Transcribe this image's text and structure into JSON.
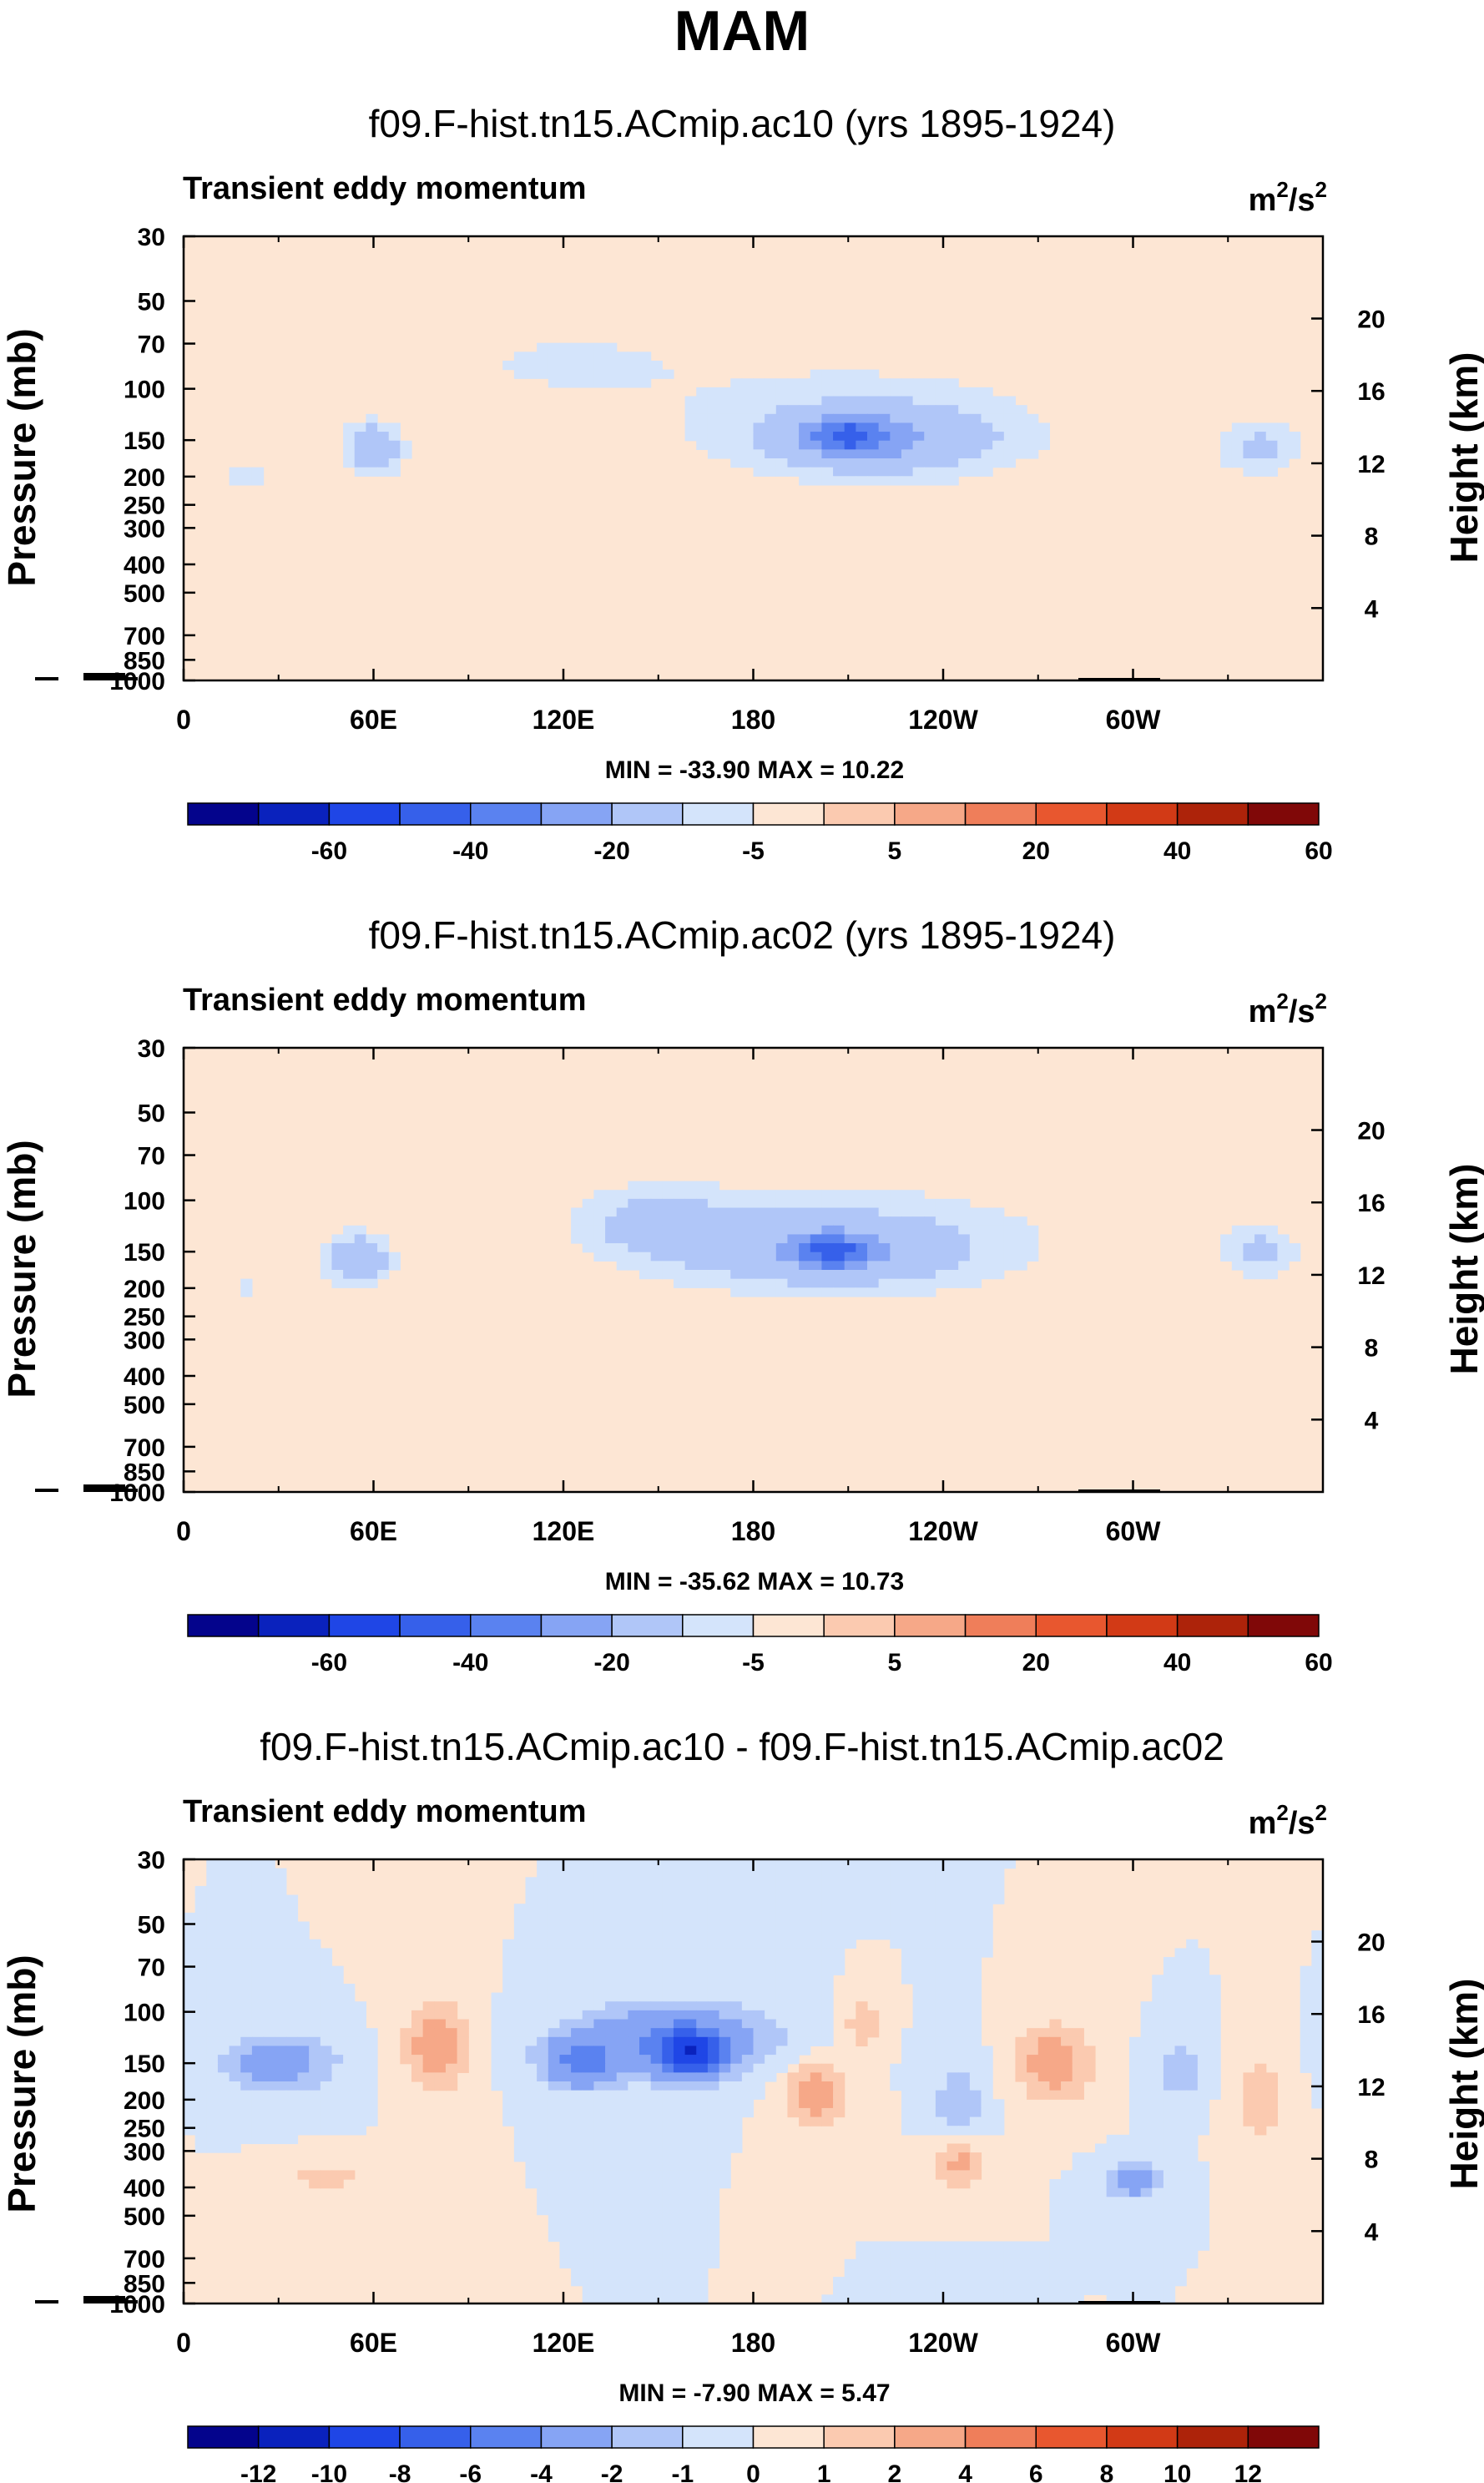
{
  "figure": {
    "title": "MAM",
    "x_ticks": [
      "0",
      "60E",
      "120E",
      "180",
      "120W",
      "60W"
    ],
    "p_ticks": [
      "30",
      "50",
      "70",
      "100",
      "150",
      "200",
      "250",
      "300",
      "400",
      "500",
      "700",
      "850",
      "1000"
    ],
    "h_ticks": [
      "20",
      "16",
      "12",
      "8",
      "4"
    ],
    "ylabel_left": "Pressure (mb)",
    "ylabel_right": "Height (km)",
    "units_base": "m",
    "units_sup1": "2",
    "units_mid": "/s",
    "units_sup2": "2"
  },
  "chart_data": [
    {
      "type": "heatmap",
      "title": "f09.F-hist.tn15.ACmip.ac10 (yrs 1895-1924)",
      "subtitle": "Transient eddy momentum",
      "stats": "MIN = -33.90  MAX =  10.22",
      "x_range": [
        0,
        360
      ],
      "x_unit": "degrees longitude",
      "y_range_pressure_mb": [
        30,
        1000
      ],
      "colorbar_labels": [
        "-60",
        "-40",
        "-20",
        "-5",
        "5",
        "20",
        "40",
        "60"
      ],
      "colorbar_colors": [
        "#04048c",
        "#0a22bd",
        "#1f46e6",
        "#3660ea",
        "#5a82f0",
        "#86a4f4",
        "#b0c6f8",
        "#d4e4fb",
        "#fde6d4",
        "#fbcab0",
        "#f6a888",
        "#ef7e5a",
        "#e8572f",
        "#d23a16",
        "#ad230a",
        "#800808"
      ],
      "features": [
        {
          "lon": 60,
          "p": 160,
          "rx": 9,
          "ry": 0.2,
          "value": -20
        },
        {
          "lon": 220,
          "p": 150,
          "rx": 40,
          "ry": 0.3,
          "value": -18
        },
        {
          "lon": 210,
          "p": 145,
          "rx": 12,
          "ry": 0.14,
          "value": -28
        },
        {
          "lon": 340,
          "p": 160,
          "rx": 13,
          "ry": 0.22,
          "value": -12
        },
        {
          "lon": 20,
          "p": 200,
          "rx": 14,
          "ry": 0.2,
          "value": -6
        },
        {
          "lon": 200,
          "p": 110,
          "rx": 90,
          "ry": 0.55,
          "value": -5
        },
        {
          "lon": 120,
          "p": 80,
          "rx": 35,
          "ry": 0.25,
          "value": -5
        }
      ]
    },
    {
      "type": "heatmap",
      "title": "f09.F-hist.tn15.ACmip.ac02 (yrs 1895-1924)",
      "subtitle": "Transient eddy momentum",
      "stats": "MIN = -35.62  MAX =  10.73",
      "x_range": [
        0,
        360
      ],
      "x_unit": "degrees longitude",
      "y_range_pressure_mb": [
        30,
        1000
      ],
      "colorbar_labels": [
        "-60",
        "-40",
        "-20",
        "-5",
        "5",
        "20",
        "40",
        "60"
      ],
      "colorbar_colors": [
        "#04048c",
        "#0a22bd",
        "#1f46e6",
        "#3660ea",
        "#5a82f0",
        "#86a4f4",
        "#b0c6f8",
        "#d4e4fb",
        "#fde6d4",
        "#fbcab0",
        "#f6a888",
        "#ef7e5a",
        "#e8572f",
        "#d23a16",
        "#ad230a",
        "#800808"
      ],
      "features": [
        {
          "lon": 55,
          "p": 160,
          "rx": 10,
          "ry": 0.2,
          "value": -19
        },
        {
          "lon": 205,
          "p": 150,
          "rx": 45,
          "ry": 0.3,
          "value": -17
        },
        {
          "lon": 205,
          "p": 150,
          "rx": 10,
          "ry": 0.12,
          "value": -28
        },
        {
          "lon": 150,
          "p": 120,
          "rx": 20,
          "ry": 0.25,
          "value": -12
        },
        {
          "lon": 340,
          "p": 150,
          "rx": 12,
          "ry": 0.2,
          "value": -12
        },
        {
          "lon": 200,
          "p": 120,
          "rx": 110,
          "ry": 0.55,
          "value": -5
        },
        {
          "lon": 20,
          "p": 200,
          "rx": 18,
          "ry": 0.25,
          "value": -5
        }
      ]
    },
    {
      "type": "heatmap",
      "title": "f09.F-hist.tn15.ACmip.ac10 - f09.F-hist.tn15.ACmip.ac02",
      "subtitle": "Transient eddy momentum",
      "stats": "MIN = -7.90  MAX =  5.47",
      "x_range": [
        0,
        360
      ],
      "x_unit": "degrees longitude",
      "y_range_pressure_mb": [
        30,
        1000
      ],
      "colorbar_labels": [
        "-12",
        "-10",
        "-8",
        "-6",
        "-4",
        "-2",
        "-1",
        "0",
        "1",
        "2",
        "4",
        "6",
        "8",
        "10",
        "12"
      ],
      "colorbar_colors": [
        "#04048c",
        "#0a22bd",
        "#1f46e6",
        "#3660ea",
        "#5a82f0",
        "#86a4f4",
        "#b0c6f8",
        "#d4e4fb",
        "#fde6d4",
        "#fbcab0",
        "#f6a888",
        "#ef7e5a",
        "#e8572f",
        "#d23a16",
        "#ad230a",
        "#800808"
      ],
      "features": [
        {
          "lon": 30,
          "p": 150,
          "rx": 18,
          "ry": 0.22,
          "value": -3
        },
        {
          "lon": 80,
          "p": 130,
          "rx": 10,
          "ry": 0.35,
          "value": 3
        },
        {
          "lon": 125,
          "p": 150,
          "rx": 12,
          "ry": 0.2,
          "value": -4
        },
        {
          "lon": 155,
          "p": 125,
          "rx": 30,
          "ry": 0.28,
          "value": -4
        },
        {
          "lon": 160,
          "p": 140,
          "rx": 10,
          "ry": 0.18,
          "value": -7
        },
        {
          "lon": 200,
          "p": 190,
          "rx": 10,
          "ry": 0.25,
          "value": 3
        },
        {
          "lon": 215,
          "p": 110,
          "rx": 6,
          "ry": 0.2,
          "value": 2
        },
        {
          "lon": 245,
          "p": 220,
          "rx": 8,
          "ry": 0.4,
          "value": -2
        },
        {
          "lon": 245,
          "p": 320,
          "rx": 8,
          "ry": 0.25,
          "value": 3
        },
        {
          "lon": 275,
          "p": 150,
          "rx": 12,
          "ry": 0.3,
          "value": 3
        },
        {
          "lon": 300,
          "p": 380,
          "rx": 8,
          "ry": 0.15,
          "value": -3
        },
        {
          "lon": 315,
          "p": 160,
          "rx": 8,
          "ry": 0.22,
          "value": -2
        },
        {
          "lon": 340,
          "p": 200,
          "rx": 8,
          "ry": 0.3,
          "value": 2
        },
        {
          "lon": 45,
          "p": 370,
          "rx": 12,
          "ry": 0.12,
          "value": 1.5
        }
      ]
    }
  ]
}
